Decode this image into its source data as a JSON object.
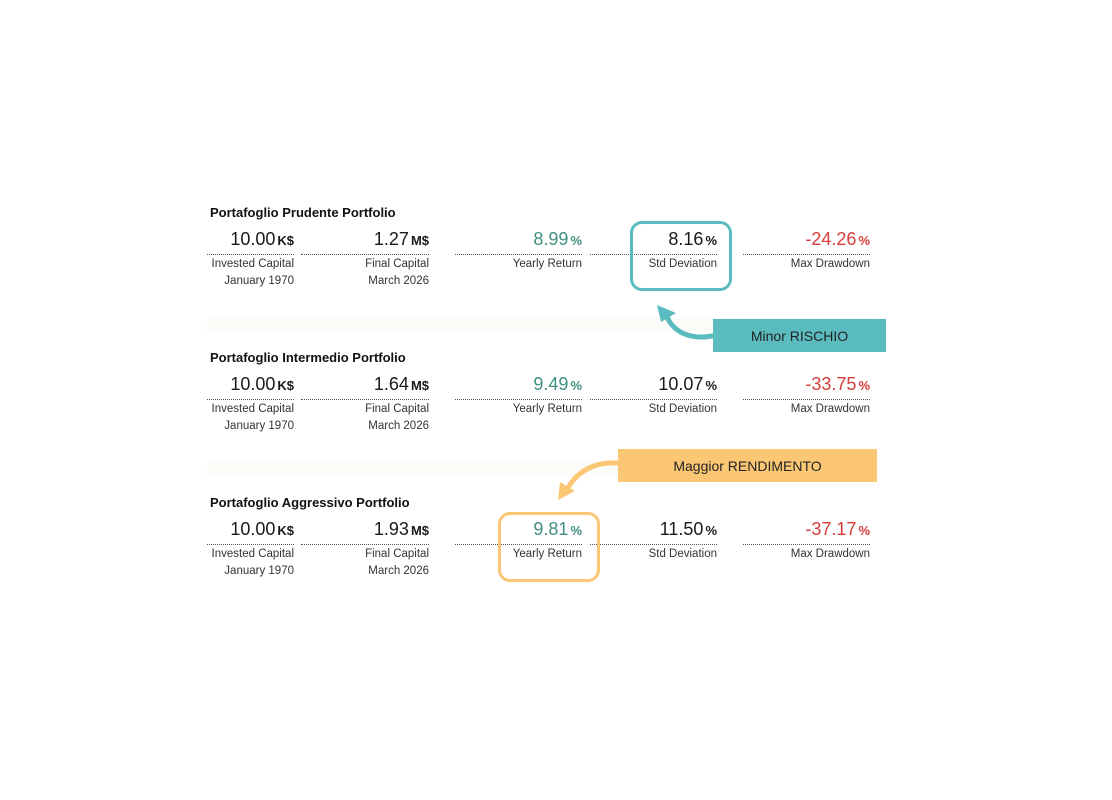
{
  "portfolios": [
    {
      "title": "Portafoglio Prudente Portfolio",
      "invested": {
        "value": "10.00",
        "unit": "K$",
        "label": "Invested Capital",
        "date": "January 1970"
      },
      "final": {
        "value": "1.27",
        "unit": "M$",
        "label": "Final Capital",
        "date": "March 2026"
      },
      "yearly_return": {
        "value": "8.99",
        "unit": "%",
        "label": "Yearly Return"
      },
      "std_dev": {
        "value": "8.16",
        "unit": "%",
        "label": "Std Deviation"
      },
      "max_drawdown": {
        "value": "-24.26",
        "unit": "%",
        "label": "Max Drawdown"
      }
    },
    {
      "title": "Portafoglio Intermedio Portfolio",
      "invested": {
        "value": "10.00",
        "unit": "K$",
        "label": "Invested Capital",
        "date": "January 1970"
      },
      "final": {
        "value": "1.64",
        "unit": "M$",
        "label": "Final Capital",
        "date": "March 2026"
      },
      "yearly_return": {
        "value": "9.49",
        "unit": "%",
        "label": "Yearly Return"
      },
      "std_dev": {
        "value": "10.07",
        "unit": "%",
        "label": "Std Deviation"
      },
      "max_drawdown": {
        "value": "-33.75",
        "unit": "%",
        "label": "Max Drawdown"
      }
    },
    {
      "title": "Portafoglio Aggressivo Portfolio",
      "invested": {
        "value": "10.00",
        "unit": "K$",
        "label": "Invested Capital",
        "date": "January 1970"
      },
      "final": {
        "value": "1.93",
        "unit": "M$",
        "label": "Final Capital",
        "date": "March 2026"
      },
      "yearly_return": {
        "value": "9.81",
        "unit": "%",
        "label": "Yearly Return"
      },
      "std_dev": {
        "value": "11.50",
        "unit": "%",
        "label": "Std Deviation"
      },
      "max_drawdown": {
        "value": "-37.17",
        "unit": "%",
        "label": "Max Drawdown"
      }
    }
  ],
  "callouts": {
    "risk": {
      "text": "Minor RISCHIO",
      "color": "#5bbcbf"
    },
    "return": {
      "text": "Maggior RENDIMENTO",
      "color": "#fbc774"
    }
  },
  "colors": {
    "positive": "#3f8f80",
    "negative": "#d63d3a"
  }
}
